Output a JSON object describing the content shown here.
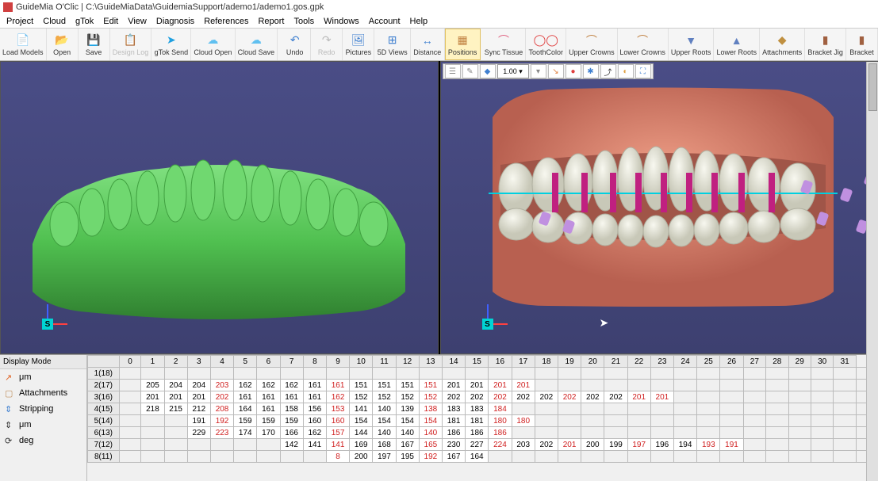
{
  "window": {
    "app_name": "GuideMia O'Clic",
    "file_path": "C:\\GuideMiaData\\GuidemiaSupport/ademo1/ademo1.gos.gpk"
  },
  "menu": [
    "Project",
    "Cloud",
    "gTok",
    "Edit",
    "View",
    "Diagnosis",
    "References",
    "Report",
    "Tools",
    "Windows",
    "Account",
    "Help"
  ],
  "toolbar": [
    {
      "label": "Load Models",
      "icon": "📄",
      "color": "#4080d0"
    },
    {
      "label": "Open",
      "icon": "📂",
      "color": "#e0a040"
    },
    {
      "label": "Save",
      "icon": "💾",
      "color": "#4060c0"
    },
    {
      "label": "Design Log",
      "icon": "📋",
      "color": "#bbb",
      "disabled": true
    },
    {
      "label": "gTok Send",
      "icon": "➤",
      "color": "#20a0e0"
    },
    {
      "label": "Cloud Open",
      "icon": "☁",
      "color": "#60c0f0"
    },
    {
      "label": "Cloud Save",
      "icon": "☁",
      "color": "#60c0f0"
    },
    {
      "label": "Undo",
      "icon": "↶",
      "color": "#4080d0"
    },
    {
      "label": "Redo",
      "icon": "↷",
      "color": "#bbb",
      "disabled": true
    },
    {
      "label": "Pictures",
      "icon": "🖼",
      "color": "#4080d0"
    },
    {
      "label": "5D Views",
      "icon": "⊞",
      "color": "#4080d0"
    },
    {
      "label": "Distance",
      "icon": "↔",
      "color": "#4080d0"
    },
    {
      "label": "Positions",
      "icon": "▦",
      "color": "#c08040",
      "selected": true
    },
    {
      "label": "Sync Tissue",
      "icon": "⌒",
      "color": "#e06080"
    },
    {
      "label": "ToothColor",
      "icon": "◯◯",
      "color": "#e04040"
    },
    {
      "label": "Upper Crowns",
      "icon": "⌒",
      "color": "#c08040"
    },
    {
      "label": "Lower Crowns",
      "icon": "⌒",
      "color": "#c08040"
    },
    {
      "label": "Upper Roots",
      "icon": "▼",
      "color": "#6080c0"
    },
    {
      "label": "Lower Roots",
      "icon": "▲",
      "color": "#6080c0"
    },
    {
      "label": "Attachments",
      "icon": "◆",
      "color": "#c09040"
    },
    {
      "label": "Bracket Jig",
      "icon": "▮",
      "color": "#a06040"
    },
    {
      "label": "Bracket",
      "icon": "▮",
      "color": "#a06040"
    }
  ],
  "viewport_toolbar": {
    "value": "1.00",
    "buttons": [
      {
        "icon": "☰",
        "color": "#888"
      },
      {
        "icon": "✎",
        "color": "#888"
      },
      {
        "icon": "◆",
        "color": "#4080d0"
      },
      {
        "icon": "▾",
        "color": "#888"
      },
      {
        "icon": "↘",
        "color": "#e08040"
      },
      {
        "icon": "●",
        "color": "#e04040"
      },
      {
        "icon": "✱",
        "color": "#4080d0"
      },
      {
        "icon": "⤴",
        "color": "#333"
      },
      {
        "icon": "◐",
        "color": "#e0a040"
      },
      {
        "icon": "⛶",
        "color": "#4080d0"
      }
    ]
  },
  "axis_label": "S",
  "viewport_colors": {
    "bg_top": "#4a4d86",
    "bg_bottom": "#3d4070",
    "green_model": "#60d060",
    "gum": "#d88070",
    "tooth": "#e8e8e0",
    "bracket": "#c02080",
    "attachment": "#c090e0",
    "wire": "#00d0e0"
  },
  "display_modes": [
    {
      "label": "μm",
      "icon": "↗",
      "color": "#e06020"
    },
    {
      "label": "Attachments",
      "icon": "▢",
      "color": "#c09060"
    },
    {
      "label": "Stripping",
      "icon": "⇕",
      "color": "#4080d0"
    },
    {
      "label": "μm",
      "icon": "⇕",
      "color": "#333"
    },
    {
      "label": "deg",
      "icon": "⟳",
      "color": "#333"
    }
  ],
  "display_mode_header": "Display Mode",
  "grid": {
    "columns": [
      "",
      "0",
      "1",
      "2",
      "3",
      "4",
      "5",
      "6",
      "7",
      "8",
      "9",
      "10",
      "11",
      "12",
      "13",
      "14",
      "15",
      "16",
      "17",
      "18",
      "19",
      "20",
      "21",
      "22",
      "23",
      "24",
      "25",
      "26",
      "27",
      "28",
      "29",
      "30",
      "31"
    ],
    "rows": [
      {
        "hdr": "1(18)",
        "cells": [
          "",
          "",
          "",
          "",
          "",
          "",
          "",
          "",
          "",
          "",
          "",
          "",
          "",
          "",
          "",
          "",
          "",
          "",
          "",
          "",
          "",
          "",
          "",
          "",
          "",
          "",
          "",
          "",
          "",
          "",
          "",
          "",
          ""
        ]
      },
      {
        "hdr": "2(17)",
        "cells": [
          "",
          "205",
          "204",
          "204",
          {
            "v": "203",
            "r": 1
          },
          "162",
          "162",
          "162",
          "161",
          {
            "v": "161",
            "r": 1
          },
          "151",
          "151",
          "151",
          {
            "v": "151",
            "r": 1
          },
          "201",
          "201",
          {
            "v": "201",
            "r": 1
          },
          {
            "v": "201",
            "r": 1
          },
          "",
          "",
          "",
          "",
          "",
          "",
          "",
          "",
          "",
          "",
          "",
          "",
          "",
          "",
          ""
        ]
      },
      {
        "hdr": "3(16)",
        "cells": [
          "",
          "201",
          "201",
          "201",
          {
            "v": "202",
            "r": 1
          },
          "161",
          "161",
          "161",
          "161",
          {
            "v": "162",
            "r": 1
          },
          "152",
          "152",
          "152",
          {
            "v": "152",
            "r": 1
          },
          "202",
          "202",
          {
            "v": "202",
            "r": 1
          },
          "202",
          "202",
          {
            "v": "202",
            "r": 1
          },
          "202",
          "202",
          {
            "v": "201",
            "r": 1
          },
          {
            "v": "201",
            "r": 1
          },
          "",
          "",
          "",
          "",
          "",
          "",
          "",
          "",
          ""
        ]
      },
      {
        "hdr": "4(15)",
        "cells": [
          "",
          "218",
          "215",
          "212",
          {
            "v": "208",
            "r": 1
          },
          "164",
          "161",
          "158",
          "156",
          {
            "v": "153",
            "r": 1
          },
          "141",
          "140",
          "139",
          {
            "v": "138",
            "r": 1
          },
          "183",
          "183",
          {
            "v": "184",
            "r": 1
          },
          "",
          "",
          "",
          "",
          "",
          "",
          "",
          "",
          "",
          "",
          "",
          "",
          "",
          "",
          "",
          ""
        ]
      },
      {
        "hdr": "5(14)",
        "cells": [
          "",
          "",
          "",
          "191",
          {
            "v": "192",
            "r": 1
          },
          "159",
          "159",
          "159",
          "160",
          {
            "v": "160",
            "r": 1
          },
          "154",
          "154",
          "154",
          {
            "v": "154",
            "r": 1
          },
          "181",
          "181",
          {
            "v": "180",
            "r": 1
          },
          {
            "v": "180",
            "r": 1
          },
          "",
          "",
          "",
          "",
          "",
          "",
          "",
          "",
          "",
          "",
          "",
          "",
          "",
          "",
          ""
        ]
      },
      {
        "hdr": "6(13)",
        "cells": [
          "",
          "",
          "",
          "229",
          {
            "v": "223",
            "r": 1
          },
          "174",
          "170",
          "166",
          "162",
          {
            "v": "157",
            "r": 1
          },
          "144",
          "140",
          "140",
          {
            "v": "140",
            "r": 1
          },
          "186",
          "186",
          {
            "v": "186",
            "r": 1
          },
          "",
          "",
          "",
          "",
          "",
          "",
          "",
          "",
          "",
          "",
          "",
          "",
          "",
          "",
          "",
          ""
        ]
      },
      {
        "hdr": "7(12)",
        "cells": [
          "",
          "",
          "",
          "",
          "",
          "",
          "",
          "142",
          "141",
          {
            "v": "141",
            "r": 1
          },
          "169",
          "168",
          "167",
          {
            "v": "165",
            "r": 1
          },
          "230",
          "227",
          {
            "v": "224",
            "r": 1
          },
          "203",
          "202",
          {
            "v": "201",
            "r": 1
          },
          "200",
          "199",
          {
            "v": "197",
            "r": 1
          },
          "196",
          "194",
          {
            "v": "193",
            "r": 1
          },
          {
            "v": "191",
            "r": 1
          },
          "",
          "",
          "",
          "",
          "",
          ""
        ]
      },
      {
        "hdr": "8(11)",
        "cells": [
          "",
          "",
          "",
          "",
          "",
          "",
          "",
          "",
          "",
          {
            "v": "8",
            "r": 1
          },
          "200",
          "197",
          "195",
          {
            "v": "192",
            "r": 1
          },
          "167",
          "164",
          "",
          "",
          "",
          "",
          "",
          "",
          "",
          "",
          "",
          "",
          "",
          "",
          "",
          "",
          "",
          "",
          ""
        ]
      }
    ]
  }
}
